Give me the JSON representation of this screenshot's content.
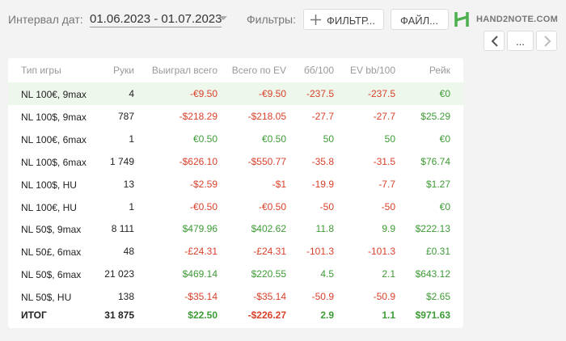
{
  "toolbar": {
    "date_label": "Интервал дат:",
    "date_range": "01.06.2023 - 01.07.2023",
    "filters_label": "Фильтры:",
    "filter_button": "ФИЛЬТР...",
    "file_button": "ФАЙЛ...",
    "logo": "HAND2NOTE.COM",
    "more_button": "..."
  },
  "table": {
    "headers": [
      "Тип игры",
      "Руки",
      "Выиграл всего",
      "Всего по EV",
      "бб/100",
      "EV bb/100",
      "Рейк"
    ],
    "rows": [
      [
        "NL 100€, 9max",
        "4",
        "-€9.50",
        "-€9.50",
        "-237.5",
        "-237.5",
        "€0"
      ],
      [
        "NL 100$, 9max",
        "787",
        "-$218.29",
        "-$218.05",
        "-27.7",
        "-27.7",
        "$25.29"
      ],
      [
        "NL 100€, 6max",
        "1",
        "€0.50",
        "€0.50",
        "50",
        "50",
        "€0"
      ],
      [
        "NL 100$, 6max",
        "1 749",
        "-$626.10",
        "-$550.77",
        "-35.8",
        "-31.5",
        "$76.74"
      ],
      [
        "NL 100$, HU",
        "13",
        "-$2.59",
        "-$1",
        "-19.9",
        "-7.7",
        "$1.27"
      ],
      [
        "NL 100€, HU",
        "1",
        "-€0.50",
        "-€0.50",
        "-50",
        "-50",
        "€0"
      ],
      [
        "NL 50$, 9max",
        "8 111",
        "$479.96",
        "$402.62",
        "11.8",
        "9.9",
        "$222.13"
      ],
      [
        "NL 50£, 6max",
        "48",
        "-£24.31",
        "-£24.31",
        "-101.3",
        "-101.3",
        "£0.31"
      ],
      [
        "NL 50$, 6max",
        "21 023",
        "$469.14",
        "$220.55",
        "4.5",
        "2.1",
        "$643.12"
      ],
      [
        "NL 50$, HU",
        "138",
        "-$35.14",
        "-$35.14",
        "-50.9",
        "-50.9",
        "$2.65"
      ]
    ],
    "total": [
      "ИТОГ",
      "31 875",
      "$22.50",
      "-$226.27",
      "2.9",
      "1.1",
      "$971.63"
    ],
    "highlighted_row": 0,
    "positive_color": "#3d9b35",
    "negative_color": "#d9412a"
  }
}
